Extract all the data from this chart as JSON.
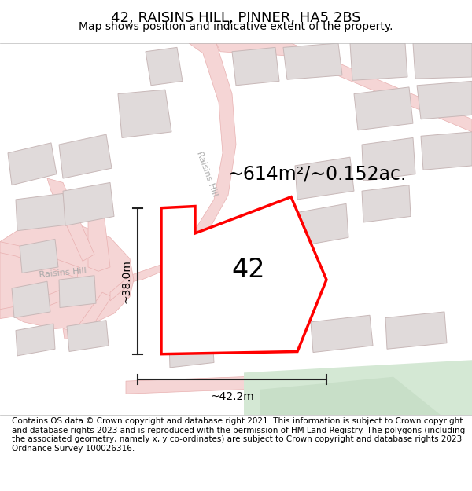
{
  "title": "42, RAISINS HILL, PINNER, HA5 2BS",
  "subtitle": "Map shows position and indicative extent of the property.",
  "footer": "Contains OS data © Crown copyright and database right 2021. This information is subject to Crown copyright and database rights 2023 and is reproduced with the permission of HM Land Registry. The polygons (including the associated geometry, namely x, y co-ordinates) are subject to Crown copyright and database rights 2023 Ordnance Survey 100026316.",
  "area_label": "~614m²/~0.152ac.",
  "number_label": "42",
  "width_label": "~42.2m",
  "height_label": "~38.0m",
  "road_label": "Raisins Hill",
  "road_label2": "Raisins Hill",
  "map_bg": "#ffffff",
  "road_fill": "#f5d5d5",
  "road_edge": "#e8b0b0",
  "building_fill": "#e0dada",
  "building_edge": "#c8b8b8",
  "green_fill": "#d4e8d4",
  "property_color": "#ff0000",
  "property_lw": 2.5,
  "measure_color": "#222222",
  "title_fontsize": 13,
  "subtitle_fontsize": 10,
  "footer_fontsize": 7.5,
  "area_fontsize": 17,
  "number_fontsize": 24,
  "measure_fontsize": 10,
  "road_text_color": "#aaaaaa",
  "road_text_size": 8
}
